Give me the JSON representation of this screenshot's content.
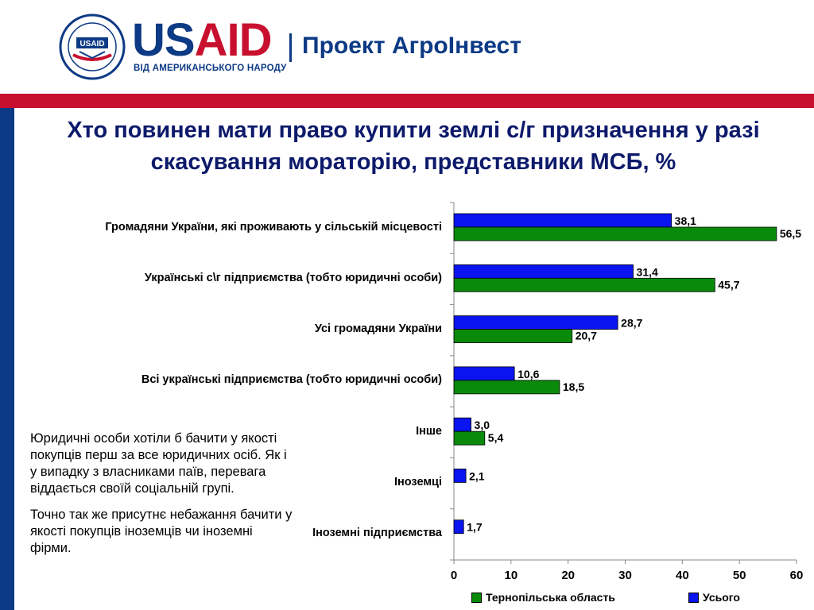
{
  "header": {
    "logo_text_us": "US",
    "logo_text_aid": "AID",
    "tagline": "ВІД АМЕРИКАНСЬКОГО НАРОДУ",
    "project": "Проект АгроІнвест"
  },
  "title": "Хто повинен мати право купити землі с/г призначення у разі скасування мораторію, представники МСБ, %",
  "notes": [
    "Юридичні особи хотіли б бачити у якості покупців перш за все юридичних осіб. Як і у випадку з власниками паїв, перевага віддається своїй соціальній групі.",
    "Точно так же присутнє небажання бачити у якості покупців іноземців чи іноземні фірми."
  ],
  "colors": {
    "blue": "#0a14f0",
    "green": "#0a8a0a",
    "accent_red": "#c8102e",
    "navy": "#0d3a85"
  },
  "chart_data": {
    "type": "bar",
    "orientation": "horizontal",
    "categories": [
      "Громадяни України, які проживають у сільській місцевості",
      "Українські с\\г підприємства (тобто юридичні особи)",
      "Усі громадяни України",
      "Всі українські підприємства (тобто юридичні особи)",
      "Інше",
      "Іноземці",
      "Іноземні підприємства"
    ],
    "series": [
      {
        "name": "Усього",
        "color": "#0a14f0",
        "values": [
          38.1,
          31.4,
          28.7,
          10.6,
          3.0,
          2.1,
          1.7
        ],
        "labels": [
          "38,1",
          "31,4",
          "28,7",
          "10,6",
          "3,0",
          "2,1",
          "1,7"
        ]
      },
      {
        "name": "Тернопільська область",
        "color": "#0a8a0a",
        "values": [
          56.5,
          45.7,
          20.7,
          18.5,
          5.4,
          null,
          null
        ],
        "labels": [
          "56,5",
          "45,7",
          "20,7",
          "18,5",
          "5,4",
          "",
          ""
        ]
      }
    ],
    "x_ticks": [
      "0",
      "10",
      "20",
      "30",
      "40",
      "50",
      "60"
    ],
    "xlim": [
      0,
      60
    ],
    "legend": {
      "position": "bottom",
      "order": [
        "Тернопільська область",
        "Усього"
      ]
    },
    "grid": false
  }
}
